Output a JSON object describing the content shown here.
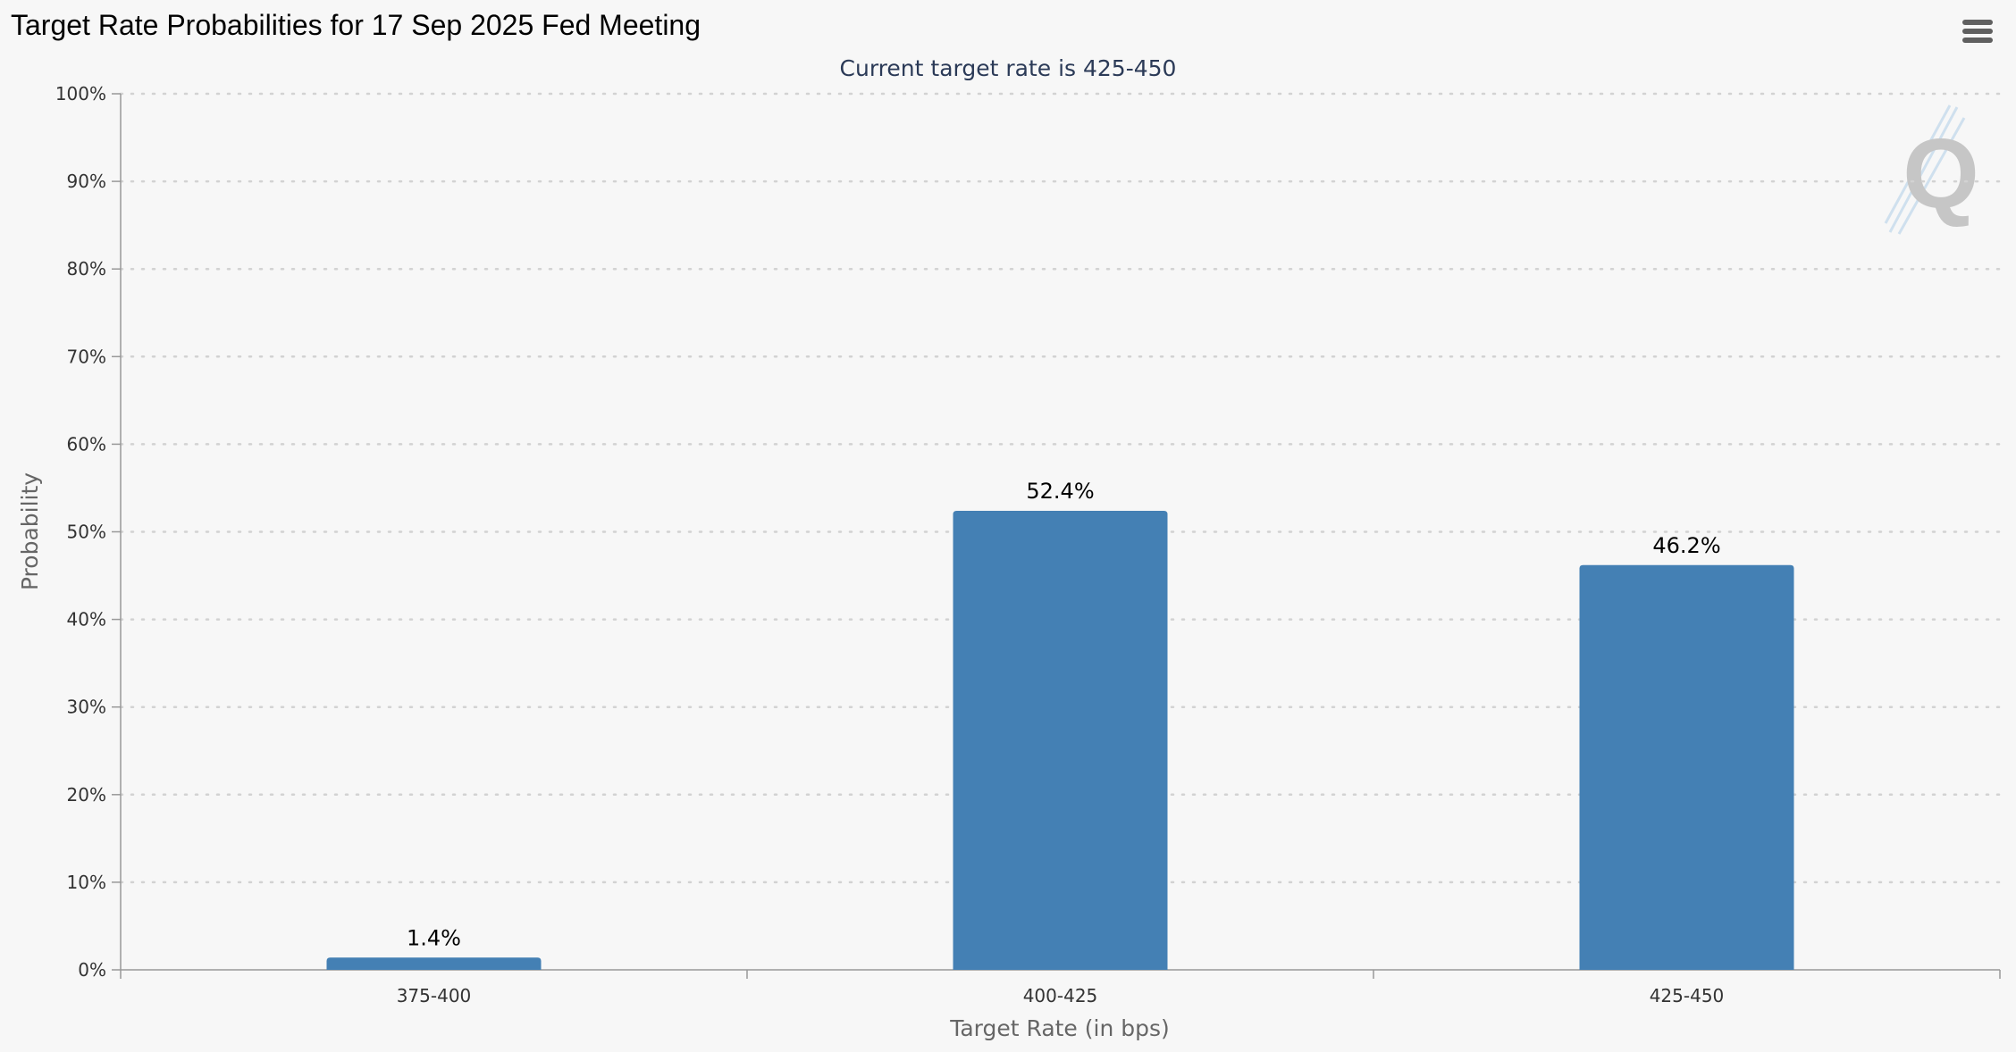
{
  "page": {
    "title": "Target Rate Probabilities for 17 Sep 2025 Fed Meeting"
  },
  "menu": {
    "icon": "hamburger-menu-icon"
  },
  "watermark": {
    "icon": "q-logo-icon",
    "text": "Q"
  },
  "chart_data": {
    "type": "bar",
    "title": "Target Rate Probabilities for 17 Sep 2025 Fed Meeting",
    "subtitle": "Current target rate is 425-450",
    "xlabel": "Target Rate (in bps)",
    "ylabel": "Probability",
    "categories": [
      "375-400",
      "400-425",
      "425-450"
    ],
    "values": [
      1.4,
      52.4,
      46.2
    ],
    "data_labels": [
      "1.4%",
      "52.4%",
      "46.2%"
    ],
    "ylim": [
      0,
      100
    ],
    "yticks": [
      "0%",
      "10%",
      "20%",
      "30%",
      "40%",
      "50%",
      "60%",
      "70%",
      "80%",
      "90%",
      "100%"
    ],
    "grid": true,
    "legend": "none",
    "bar_color": "#4480b4"
  }
}
